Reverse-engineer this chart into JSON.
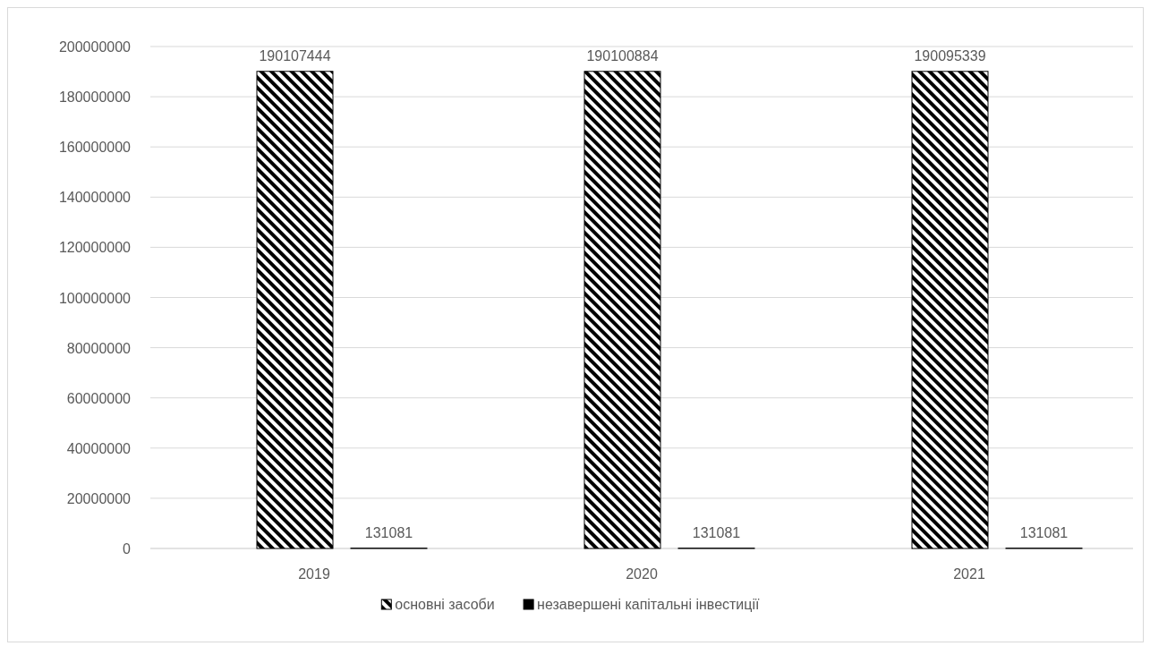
{
  "chart_data": {
    "type": "bar",
    "categories": [
      "2019",
      "2020",
      "2021"
    ],
    "series": [
      {
        "name": "основні засоби",
        "color": "#000000",
        "values": [
          190107444,
          190100884,
          190095339
        ]
      },
      {
        "name": "незавершені капітальні інвестиції",
        "color": "#000000",
        "values": [
          131081,
          131081,
          131081
        ]
      }
    ],
    "ylim": [
      0,
      200000000
    ],
    "yticks": [
      0,
      20000000,
      40000000,
      60000000,
      80000000,
      100000000,
      120000000,
      140000000,
      160000000,
      180000000,
      200000000
    ],
    "grid": "y",
    "legend": "bottom",
    "data_labels": true
  }
}
